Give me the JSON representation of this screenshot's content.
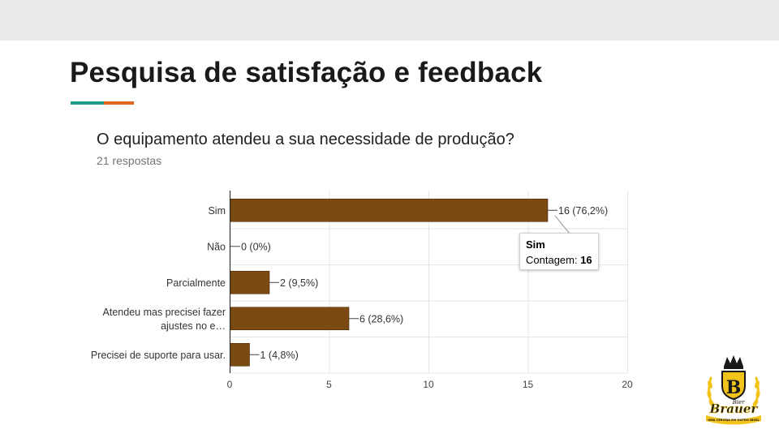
{
  "slide": {
    "title": "Pesquisa de satisfação e feedback",
    "accent_colors": [
      "#1f9a8a",
      "#e3661f"
    ]
  },
  "question": {
    "text": "O equipamento atendeu a sua necessidade de produção?",
    "responses": "21 respostas"
  },
  "chart_data": {
    "type": "bar",
    "orientation": "horizontal",
    "categories": [
      "Sim",
      "Não",
      "Parcialmente",
      "Atendeu mas precisei fazer ajustes no e…",
      "Precisei de suporte para usar."
    ],
    "category_lines": [
      [
        "Sim"
      ],
      [
        "Não"
      ],
      [
        "Parcialmente"
      ],
      [
        "Atendeu mas precisei fazer",
        "ajustes no e…"
      ],
      [
        "Precisei de suporte para usar."
      ]
    ],
    "values": [
      16,
      0,
      2,
      6,
      1
    ],
    "data_labels": [
      "16 (76,2%)",
      "0 (0%)",
      "2 (9,5%)",
      "6 (28,6%)",
      "1 (4,8%)"
    ],
    "x_ticks": [
      0,
      5,
      10,
      15,
      20
    ],
    "xlim": [
      0,
      20
    ],
    "grid": true,
    "bar_color": "#7b4a12",
    "tooltip": {
      "title": "Sim",
      "label": "Contagem: ",
      "value": "16"
    }
  },
  "logo": {
    "top_text": "Bier",
    "brand": "Brauer",
    "ribbon_text": "UMA CERVEJA EM OUTRO NÍVEL",
    "letter": "B",
    "colors": [
      "#f2c31b",
      "#1a1a1a"
    ]
  }
}
